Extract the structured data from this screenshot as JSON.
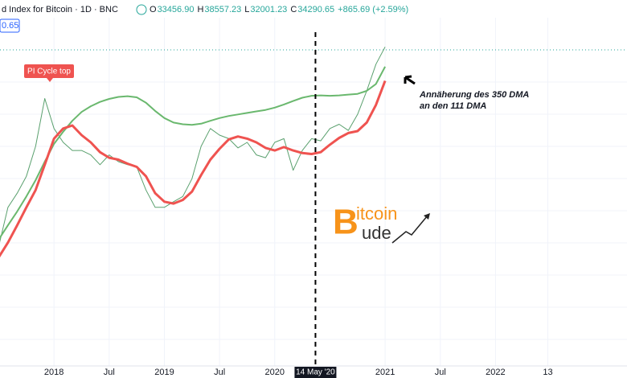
{
  "header": {
    "title": "d Index for Bitcoin · 1D · BNC",
    "ohlc": [
      {
        "key": "O",
        "value": "33456.90"
      },
      {
        "key": "H",
        "value": "38557.23"
      },
      {
        "key": "L",
        "value": "32001.23"
      },
      {
        "key": "C",
        "value": "34290.65"
      }
    ],
    "change": "+865.69 (+2.59%)",
    "price_tag": "0.65"
  },
  "logo": {
    "initial_top": "B",
    "rest_top": "itcoin",
    "rest_bottom": "ude"
  },
  "chart_data": {
    "type": "line",
    "log": true,
    "x": [
      "2017-07",
      "2017-08",
      "2017-09",
      "2017-10",
      "2017-11",
      "2017-12",
      "2018-01",
      "2018-02",
      "2018-03",
      "2018-04",
      "2018-05",
      "2018-06",
      "2018-07",
      "2018-08",
      "2018-09",
      "2018-10",
      "2018-11",
      "2018-12",
      "2019-01",
      "2019-02",
      "2019-03",
      "2019-04",
      "2019-05",
      "2019-06",
      "2019-07",
      "2019-08",
      "2019-09",
      "2019-10",
      "2019-11",
      "2019-12",
      "2020-01",
      "2020-02",
      "2020-03",
      "2020-04",
      "2020-05",
      "2020-06",
      "2020-07",
      "2020-08",
      "2020-09",
      "2020-10",
      "2020-11",
      "2020-12",
      "2021-01"
    ],
    "series": [
      {
        "color": "#5aa06e",
        "width": 1,
        "values": [
          2000,
          3500,
          4300,
          5500,
          8500,
          17000,
          11000,
          9000,
          8000,
          8000,
          7500,
          6500,
          7500,
          6800,
          6500,
          6300,
          4500,
          3500,
          3500,
          3800,
          4100,
          5300,
          8500,
          11000,
          10000,
          9500,
          8300,
          9000,
          7500,
          7200,
          9000,
          9500,
          6000,
          8000,
          9500,
          9200,
          11000,
          11700,
          10700,
          13500,
          19000,
          28000,
          36000
        ]
      },
      {
        "color": "#6ab86e",
        "width": 2,
        "values": [
          2200,
          2700,
          3300,
          4100,
          5200,
          6800,
          8800,
          10500,
          12300,
          14000,
          15200,
          16200,
          16900,
          17400,
          17600,
          17300,
          16000,
          14200,
          12800,
          12000,
          11700,
          11600,
          11800,
          12300,
          12800,
          13200,
          13500,
          13800,
          14100,
          14400,
          14900,
          15600,
          16400,
          17200,
          17700,
          17800,
          17700,
          17800,
          18000,
          18200,
          19000,
          21000,
          27000
        ]
      },
      {
        "color": "#ef5350",
        "width": 3,
        "values": [
          1700,
          2100,
          2700,
          3500,
          4500,
          6500,
          9500,
          11000,
          11500,
          10000,
          9000,
          7800,
          7200,
          7000,
          6600,
          6300,
          5500,
          4300,
          3800,
          3700,
          3900,
          4400,
          5600,
          7000,
          8200,
          9400,
          9800,
          9500,
          9000,
          8300,
          8000,
          8400,
          8000,
          7700,
          7600,
          7800,
          8700,
          9600,
          10300,
          10600,
          12000,
          15500,
          22000
        ]
      }
    ],
    "xlim": [
      "2017-07-05",
      "2023-03-10"
    ],
    "ylim": [
      350,
      55000
    ],
    "xticks": [
      {
        "value": "2018-01",
        "label": "2018"
      },
      {
        "value": "2018-07",
        "label": "Jul"
      },
      {
        "value": "2019-01",
        "label": "2019"
      },
      {
        "value": "2019-07",
        "label": "Jul"
      },
      {
        "value": "2020-01",
        "label": "2020"
      },
      {
        "value": "2021-01",
        "label": "2021"
      },
      {
        "value": "2021-07",
        "label": "Jul"
      },
      {
        "value": "2022-01",
        "label": "2022"
      },
      {
        "value": "2022-06-22",
        "label": "13"
      }
    ],
    "marker": {
      "value": "2020-05-14",
      "label": "14 May '20"
    },
    "annotations": [
      {
        "text": "PI Cycle top"
      },
      {
        "text": "Annäherung des 350 DMA"
      },
      {
        "text": "an den 111 DMA"
      }
    ],
    "grid": true
  }
}
